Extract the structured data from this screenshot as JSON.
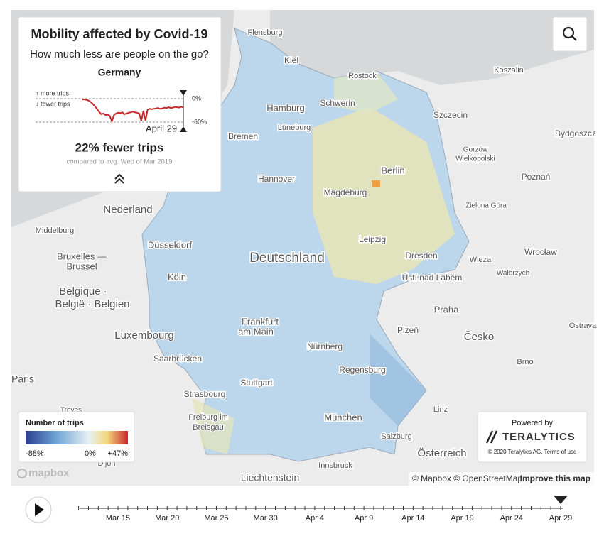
{
  "panel": {
    "title": "Mobility affected by Covid-19",
    "subtitle": "How much less are people on the go?",
    "region": "Germany",
    "more_label": "↑ more trips",
    "fewer_label": "↓ fewer trips",
    "sparkline": {
      "ylim": [
        -60,
        0
      ],
      "yticks": [
        {
          "value": 0,
          "label": "0%"
        },
        {
          "value": -60,
          "label": "-60%"
        }
      ],
      "color": "#c62828",
      "values": [
        -2,
        -2,
        -3,
        -5,
        -9,
        -14,
        -20,
        -27,
        -34,
        -40,
        -38,
        -42,
        -41,
        -44,
        -58,
        -42,
        -38,
        -36,
        -37,
        -35,
        -40,
        -38,
        -36,
        -35,
        -33,
        -35,
        -36,
        -38,
        -57,
        -31,
        -56,
        -28,
        -26,
        -27,
        -26,
        -25,
        -24,
        -26,
        -25,
        -23,
        -24,
        -22,
        -24,
        -23,
        -21,
        -22,
        -23,
        -21,
        -22
      ]
    },
    "date": "April 29",
    "headline": "22% fewer trips",
    "note": "compared to avg. Wed of Mar 2019"
  },
  "legend": {
    "title": "Number of trips",
    "labels": [
      "-88%",
      "0%",
      "+47%"
    ]
  },
  "credit": {
    "powered": "Powered by",
    "brand": "TERALYTICS",
    "copyright": "© 2020 Teralytics AG, Terms of use"
  },
  "attribution": {
    "logo": "mapbox",
    "text": "© Mapbox © OpenStreetMap",
    "link": "Improve this map"
  },
  "map": {
    "labels": [
      "Flensburg",
      "Kiel",
      "Rostock",
      "Hamburg",
      "Schwerin",
      "Szczecin",
      "Koszalin",
      "Bremen",
      "Lüneburg",
      "Bydgoszcz",
      "Gorzów",
      "Wielkopolski",
      "Berlin",
      "Hannover",
      "Magdeburg",
      "Poznań",
      "Zielona Góra",
      "Nederland",
      "Middelburg",
      "Bruxelles —",
      "Brussel",
      "Düsseldorf",
      "Leipzig",
      "Dresden",
      "Wrocław",
      "Wieza",
      "Wałbrzych",
      "Köln",
      "Belgique ·",
      "België · Belgien",
      "Ústí nad Labem",
      "Praha",
      "Deutschland",
      "Frankfurt",
      "am Main",
      "Luxembourg",
      "Plzeň",
      "Česko",
      "Nürnberg",
      "Regensburg",
      "Saarbrücken",
      "Paris",
      "Stuttgart",
      "Strasbourg",
      "Brno",
      "Freiburg im",
      "Breisgau",
      "Linz",
      "München",
      "Salzburg",
      "Österreich",
      "Liechtenstein",
      "Innsbruck",
      "Dijon",
      "Ostrava",
      "Troyes"
    ]
  },
  "timeline": {
    "labels": [
      "Mar 15",
      "Mar 20",
      "Mar 25",
      "Mar 30",
      "Apr 4",
      "Apr 9",
      "Apr 14",
      "Apr 19",
      "Apr 24",
      "Apr 29"
    ]
  }
}
